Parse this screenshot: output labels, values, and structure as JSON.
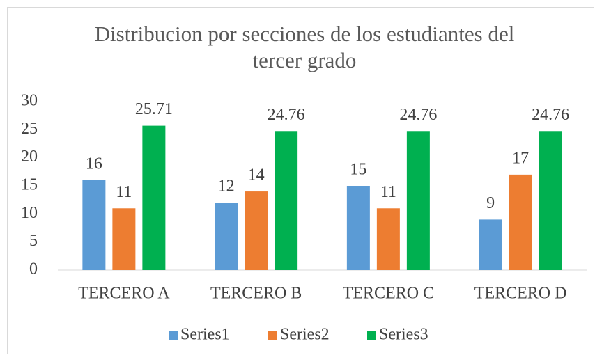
{
  "chart_data": {
    "type": "bar",
    "title": "Distribucion por secciones de los estudiantes del tercer grado",
    "categories": [
      "TERCERO A",
      "TERCERO B",
      "TERCERO C",
      "TERCERO D"
    ],
    "series": [
      {
        "name": "Series1",
        "color": "#5b9bd5",
        "values": [
          16,
          12,
          15,
          9
        ]
      },
      {
        "name": "Series2",
        "color": "#ed7d31",
        "values": [
          11,
          14,
          11,
          17
        ]
      },
      {
        "name": "Series3",
        "color": "#00b050",
        "values": [
          25.71,
          24.76,
          24.76,
          24.76
        ]
      }
    ],
    "ylim": [
      0,
      30
    ],
    "yticks": [
      0,
      5,
      10,
      15,
      20,
      25,
      30
    ],
    "grid": false,
    "legend": "bottom"
  }
}
